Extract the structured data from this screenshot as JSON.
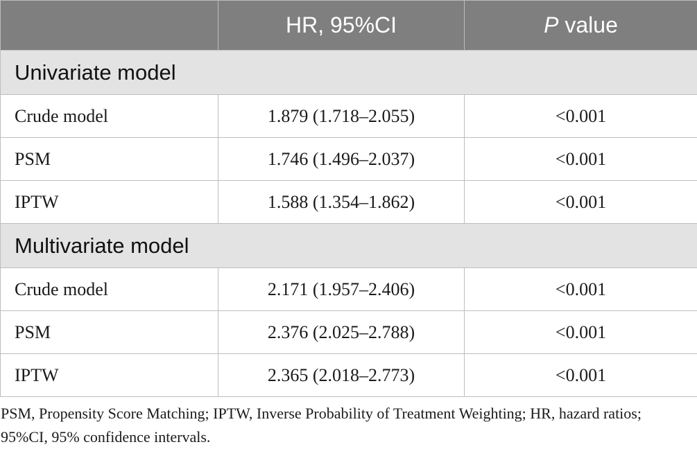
{
  "table": {
    "headers": [
      "",
      "HR, 95%CI",
      "P",
      " value"
    ],
    "sections": [
      {
        "title": "Univariate model",
        "rows": [
          {
            "label": "Crude model",
            "hr": "1.879 (1.718–2.055)",
            "p": "<0.001"
          },
          {
            "label": "PSM",
            "hr": "1.746 (1.496–2.037)",
            "p": "<0.001"
          },
          {
            "label": "IPTW",
            "hr": "1.588 (1.354–1.862)",
            "p": "<0.001"
          }
        ]
      },
      {
        "title": "Multivariate model",
        "rows": [
          {
            "label": "Crude model",
            "hr": "2.171 (1.957–2.406)",
            "p": "<0.001"
          },
          {
            "label": "PSM",
            "hr": "2.376 (2.025–2.788)",
            "p": "<0.001"
          },
          {
            "label": "IPTW",
            "hr": "2.365 (2.018–2.773)",
            "p": "<0.001"
          }
        ]
      }
    ]
  },
  "footnote": "PSM, Propensity Score Matching; IPTW, Inverse Probability of Treatment Weighting; HR, hazard ratios; 95%CI, 95% confidence intervals.",
  "colors": {
    "header_bg": "#7f7f7f",
    "section_bg": "#e3e3e3",
    "border": "#bdbdbd"
  }
}
